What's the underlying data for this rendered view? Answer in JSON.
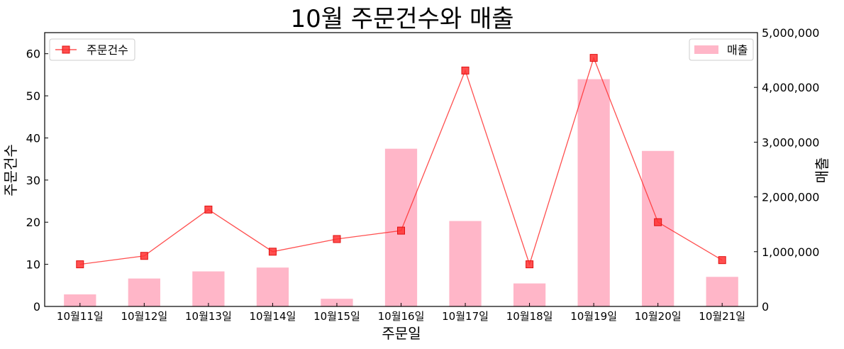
{
  "chart_data": {
    "type": "bar+line",
    "title": "10월 주문건수와 매출",
    "xlabel": "주문일",
    "ylabel_left": "주문건수",
    "ylabel_right": "매출",
    "categories": [
      "10월11일",
      "10월12일",
      "10월13일",
      "10월14일",
      "10월15일",
      "10월16일",
      "10월17일",
      "10월18일",
      "10월19일",
      "10월20일",
      "10월21일"
    ],
    "y_left": {
      "lim": [
        0,
        65
      ],
      "ticks": [
        0,
        10,
        20,
        30,
        40,
        50,
        60
      ]
    },
    "y_right": {
      "lim": [
        0,
        5000000
      ],
      "ticks": [
        0,
        1000000,
        2000000,
        3000000,
        4000000,
        5000000
      ],
      "tick_labels": [
        "0",
        "1,000,000",
        "2,000,000",
        "3,000,000",
        "4,000,000",
        "5,000,000"
      ]
    },
    "series": [
      {
        "name": "매출",
        "kind": "bar",
        "axis": "right",
        "color": "#FFB6C8",
        "values": [
          220000,
          510000,
          640000,
          710000,
          140000,
          2880000,
          1560000,
          420000,
          4150000,
          2840000,
          540000
        ]
      },
      {
        "name": "주문건수",
        "kind": "line",
        "axis": "left",
        "color": "#FF3030",
        "marker": "square",
        "values": [
          10,
          12,
          23,
          13,
          16,
          18,
          56,
          10,
          59,
          20,
          11
        ]
      }
    ],
    "legend_line_position": "top-left",
    "legend_bar_position": "top-right",
    "grid": false
  }
}
